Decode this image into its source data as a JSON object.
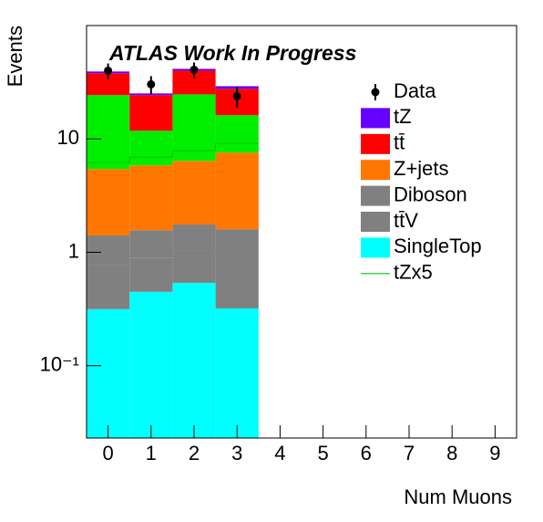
{
  "chart_data": {
    "type": "stacked_histogram",
    "title": "ATLAS Work In Progress",
    "x_label": "Num Muons",
    "y_label": "Events",
    "log_y": true,
    "categories": [
      0,
      1,
      2,
      3,
      4,
      5,
      6,
      7,
      8,
      9
    ],
    "xlim": [
      -0.5,
      9.5
    ],
    "xticks": [
      0,
      1,
      2,
      3,
      4,
      5,
      6,
      7,
      8,
      9
    ],
    "ylim": [
      0.023,
      100
    ],
    "yticks": [
      {
        "value": 0.1,
        "label": "10⁻¹"
      },
      1,
      10
    ],
    "data": {
      "name": "Data",
      "color": "#000000",
      "values": [
        40.0,
        30.3,
        40.8,
        23.8,
        0,
        0,
        0,
        0,
        0,
        0
      ],
      "errors": [
        6.3,
        5.5,
        6.4,
        4.9,
        0,
        0,
        0,
        0,
        0,
        0
      ]
    },
    "series": [
      {
        "name": "SingleTop",
        "color": "#00ffff",
        "values": [
          0.315,
          0.448,
          0.538,
          0.32,
          0,
          0,
          0,
          0,
          0,
          0
        ]
      },
      {
        "name": "tt̄V",
        "color": "#808080",
        "values": [
          0.45,
          0.45,
          0.5,
          0.55,
          0,
          0,
          0,
          0,
          0,
          0
        ]
      },
      {
        "name": "Diboson",
        "color": "#808080",
        "values": [
          0.645,
          0.67,
          0.72,
          0.73,
          0,
          0,
          0,
          0,
          0,
          0
        ]
      },
      {
        "name": "Z+jets",
        "color": "#ff7700",
        "values": [
          4.02,
          4.28,
          4.65,
          5.98,
          0,
          0,
          0,
          0,
          0,
          0
        ]
      },
      {
        "name": null,
        "color": "#00ee00",
        "values": [
          18.9,
          5.95,
          18.3,
          8.6,
          0,
          0,
          0,
          0,
          0,
          0
        ]
      },
      {
        "name": "tt̄",
        "color": "#ff0000",
        "values": [
          13.6,
          12.5,
          15.3,
          11.5,
          0,
          0,
          0,
          0,
          0,
          0
        ]
      },
      {
        "name": "tZ",
        "color": "#6600ff",
        "values": [
          1.4,
          0.9,
          1.5,
          1.5,
          0,
          0,
          0,
          0,
          0,
          0
        ]
      }
    ],
    "overlay": {
      "name": "tZx5",
      "color": "#00cc00",
      "values": [
        6.18,
        6.9,
        7.86,
        9.1,
        null,
        null,
        null,
        null,
        null,
        null
      ]
    }
  }
}
